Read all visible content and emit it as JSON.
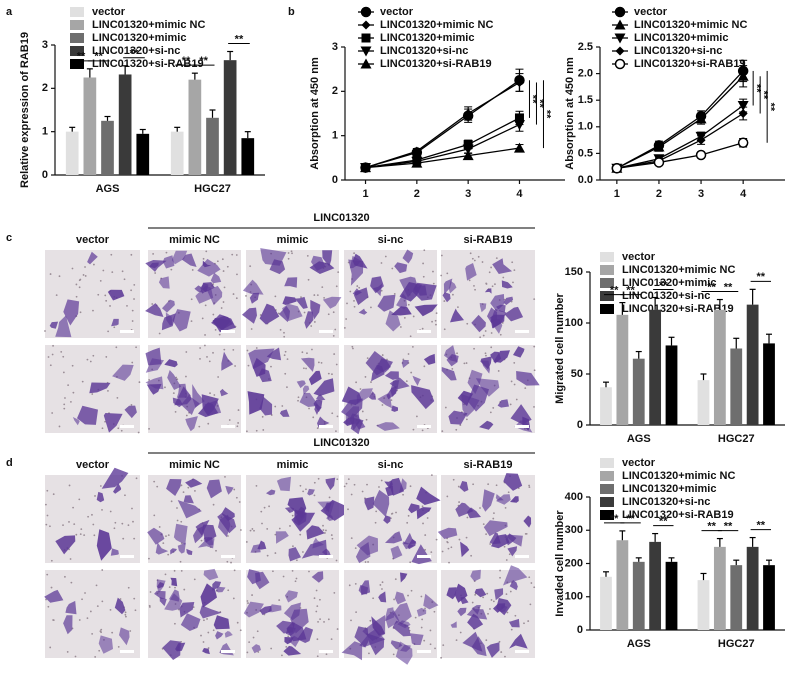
{
  "chart_data": [
    {
      "type": "bar",
      "label": "a",
      "ylabel": "Relative expression of RAB19",
      "categories": [
        "AGS",
        "HGC27"
      ],
      "series": [
        {
          "name": "vector",
          "color": "#e0e0e0",
          "values": [
            1.0,
            1.0
          ],
          "errors": [
            0.1,
            0.1
          ]
        },
        {
          "name": "LINC01320+mimic NC",
          "color": "#a6a6a6",
          "values": [
            2.25,
            2.2
          ],
          "errors": [
            0.2,
            0.15
          ]
        },
        {
          "name": "LINC01320+mimic",
          "color": "#6e6e6e",
          "values": [
            1.25,
            1.32
          ],
          "errors": [
            0.1,
            0.18
          ]
        },
        {
          "name": "LINC01320+si-nc",
          "color": "#3a3a3a",
          "values": [
            2.32,
            2.65
          ],
          "errors": [
            0.2,
            0.2
          ]
        },
        {
          "name": "LINC01320+si-RAB19",
          "color": "#000000",
          "values": [
            0.95,
            0.85
          ],
          "errors": [
            0.1,
            0.15
          ]
        }
      ],
      "ylim": [
        0,
        3
      ],
      "yticks": [
        0,
        1,
        2,
        3
      ],
      "legend": "top-left",
      "significance": [
        {
          "category": 0,
          "pair": [
            0,
            1
          ],
          "label": "**"
        },
        {
          "category": 0,
          "pair": [
            1,
            2
          ],
          "label": "**"
        },
        {
          "category": 0,
          "pair": [
            3,
            4
          ],
          "label": "**"
        },
        {
          "category": 1,
          "pair": [
            0,
            1
          ],
          "label": "**"
        },
        {
          "category": 1,
          "pair": [
            1,
            2
          ],
          "label": "**"
        },
        {
          "category": 1,
          "pair": [
            3,
            4
          ],
          "label": "**"
        }
      ]
    },
    {
      "type": "line",
      "label": "b",
      "ylabel": "Absorption at 450 nm",
      "x": [
        1,
        2,
        3,
        4
      ],
      "series": [
        {
          "name": "vector",
          "color": "#000000",
          "marker": "circle",
          "values": [
            0.28,
            0.62,
            1.45,
            2.25
          ],
          "errors": [
            0.04,
            0.06,
            0.15,
            0.25
          ]
        },
        {
          "name": "LINC01320+mimic NC",
          "color": "#000000",
          "marker": "diamond",
          "values": [
            0.28,
            0.65,
            1.5,
            2.2
          ],
          "errors": [
            0.04,
            0.06,
            0.15,
            0.2
          ]
        },
        {
          "name": "LINC01320+mimic",
          "color": "#000000",
          "marker": "square",
          "values": [
            0.28,
            0.45,
            0.8,
            1.4
          ],
          "errors": [
            0.04,
            0.05,
            0.1,
            0.15
          ]
        },
        {
          "name": "LINC01320+si-nc",
          "color": "#000000",
          "marker": "triangle-down",
          "values": [
            0.28,
            0.42,
            0.7,
            1.25
          ],
          "errors": [
            0.04,
            0.05,
            0.1,
            0.15
          ]
        },
        {
          "name": "LINC01320+si-RAB19",
          "color": "#000000",
          "marker": "triangle-up",
          "values": [
            0.28,
            0.38,
            0.55,
            0.72
          ],
          "errors": [
            0.04,
            0.04,
            0.06,
            0.08
          ]
        }
      ],
      "xlim": [
        0.6,
        4.4
      ],
      "xticks": [
        1,
        2,
        3,
        4
      ],
      "ylim": [
        0,
        3
      ],
      "yticks": [
        0,
        1,
        2,
        3
      ],
      "legend": "top-left",
      "significance": [
        {
          "pair": [
            0,
            2
          ],
          "label": "**"
        },
        {
          "pair": [
            1,
            3
          ],
          "label": "**"
        },
        {
          "pair": [
            0,
            4
          ],
          "label": "**"
        }
      ]
    },
    {
      "type": "line",
      "ylabel": "Absorption at 450 nm",
      "x": [
        1,
        2,
        3,
        4
      ],
      "series": [
        {
          "name": "vector",
          "color": "#000000",
          "marker": "circle",
          "values": [
            0.22,
            0.65,
            1.2,
            2.05
          ],
          "errors": [
            0.03,
            0.08,
            0.1,
            0.2
          ]
        },
        {
          "name": "LINC01320+mimic NC",
          "color": "#000000",
          "marker": "triangle-up",
          "values": [
            0.22,
            0.62,
            1.15,
            1.95
          ],
          "errors": [
            0.03,
            0.08,
            0.1,
            0.2
          ]
        },
        {
          "name": "LINC01320+mimic",
          "color": "#000000",
          "marker": "triangle-down",
          "values": [
            0.22,
            0.4,
            0.82,
            1.4
          ],
          "errors": [
            0.03,
            0.05,
            0.08,
            0.12
          ]
        },
        {
          "name": "LINC01320+si-nc",
          "color": "#000000",
          "marker": "diamond",
          "values": [
            0.22,
            0.36,
            0.75,
            1.25
          ],
          "errors": [
            0.03,
            0.05,
            0.08,
            0.12
          ]
        },
        {
          "name": "LINC01320+si-RAB19",
          "color": "#000000",
          "marker": "circle-open",
          "values": [
            0.22,
            0.33,
            0.47,
            0.7
          ],
          "errors": [
            0.03,
            0.04,
            0.05,
            0.08
          ]
        }
      ],
      "xlim": [
        0.6,
        4.4
      ],
      "xticks": [
        1,
        2,
        3,
        4
      ],
      "ylim": [
        0,
        2.5
      ],
      "yticks": [
        {
          "value": 0,
          "label": "0.0"
        },
        0.5,
        {
          "value": 1,
          "label": "1.0"
        },
        1.5,
        {
          "value": 2,
          "label": "2.0"
        },
        2.5
      ],
      "legend": "top-left",
      "significance": [
        {
          "pair": [
            0,
            2
          ],
          "label": "**"
        },
        {
          "pair": [
            1,
            3
          ],
          "label": "**"
        },
        {
          "pair": [
            0,
            4
          ],
          "label": "**"
        }
      ]
    },
    {
      "type": "bar",
      "ylabel": "Migrated cell number",
      "categories": [
        "AGS",
        "HGC27"
      ],
      "series": [
        {
          "name": "vector",
          "color": "#e0e0e0",
          "values": [
            37,
            44
          ],
          "errors": [
            5,
            6
          ]
        },
        {
          "name": "LINC01320+mimic NC",
          "color": "#a6a6a6",
          "values": [
            108,
            113
          ],
          "errors": [
            12,
            10
          ]
        },
        {
          "name": "LINC01320+mimic",
          "color": "#6e6e6e",
          "values": [
            65,
            75
          ],
          "errors": [
            7,
            10
          ]
        },
        {
          "name": "LINC01320+si-nc",
          "color": "#3a3a3a",
          "values": [
            113,
            118
          ],
          "errors": [
            12,
            15
          ]
        },
        {
          "name": "LINC01320+si-RAB19",
          "color": "#000000",
          "values": [
            78,
            80
          ],
          "errors": [
            8,
            9
          ]
        }
      ],
      "ylim": [
        0,
        150
      ],
      "yticks": [
        0,
        50,
        100,
        150
      ],
      "legend": "top-left",
      "significance": [
        {
          "category": 0,
          "pair": [
            0,
            1
          ],
          "label": "**"
        },
        {
          "category": 0,
          "pair": [
            1,
            2
          ],
          "label": "**"
        },
        {
          "category": 0,
          "pair": [
            3,
            4
          ],
          "label": "**"
        },
        {
          "category": 1,
          "pair": [
            0,
            1
          ],
          "label": "**"
        },
        {
          "category": 1,
          "pair": [
            1,
            2
          ],
          "label": "**"
        },
        {
          "category": 1,
          "pair": [
            3,
            4
          ],
          "label": "**"
        }
      ]
    },
    {
      "type": "bar",
      "ylabel": "Invaded cell number",
      "categories": [
        "AGS",
        "HGC27"
      ],
      "series": [
        {
          "name": "vector",
          "color": "#e0e0e0",
          "values": [
            160,
            150
          ],
          "errors": [
            15,
            20
          ]
        },
        {
          "name": "LINC01320+mimic NC",
          "color": "#a6a6a6",
          "values": [
            270,
            250
          ],
          "errors": [
            28,
            25
          ]
        },
        {
          "name": "LINC01320+mimic",
          "color": "#6e6e6e",
          "values": [
            205,
            195
          ],
          "errors": [
            12,
            15
          ]
        },
        {
          "name": "LINC01320+si-nc",
          "color": "#3a3a3a",
          "values": [
            265,
            250
          ],
          "errors": [
            25,
            28
          ]
        },
        {
          "name": "LINC01320+si-RAB19",
          "color": "#000000",
          "values": [
            205,
            195
          ],
          "errors": [
            12,
            15
          ]
        }
      ],
      "ylim": [
        0,
        400
      ],
      "yticks": [
        0,
        100,
        200,
        300,
        400
      ],
      "legend": "top-left",
      "significance": [
        {
          "category": 0,
          "pair": [
            0,
            1
          ],
          "label": "**"
        },
        {
          "category": 0,
          "pair": [
            1,
            2
          ],
          "label": "**"
        },
        {
          "category": 0,
          "pair": [
            3,
            4
          ],
          "label": "**"
        },
        {
          "category": 1,
          "pair": [
            0,
            1
          ],
          "label": "**"
        },
        {
          "category": 1,
          "pair": [
            1,
            2
          ],
          "label": "**"
        },
        {
          "category": 1,
          "pair": [
            3,
            4
          ],
          "label": "**"
        }
      ]
    }
  ],
  "micrographs": [
    {
      "label": "c",
      "group": "LINC01320",
      "columns": [
        "vector",
        "mimic NC",
        "mimic",
        "si-nc",
        "si-RAB19"
      ]
    },
    {
      "label": "d",
      "group": "LINC01320",
      "columns": [
        "vector",
        "mimic NC",
        "mimic",
        "si-nc",
        "si-RAB19"
      ]
    }
  ]
}
